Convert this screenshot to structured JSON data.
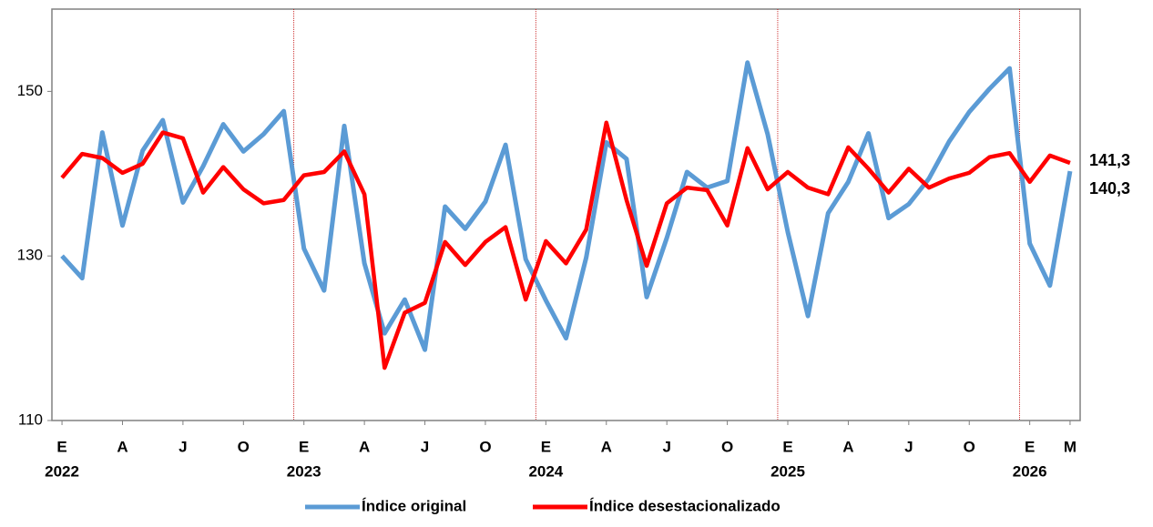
{
  "chart_data": {
    "type": "line",
    "categories": [
      "E",
      null,
      null,
      "A",
      null,
      null,
      "J",
      null,
      null,
      "O",
      null,
      null,
      "E",
      null,
      null,
      "A",
      null,
      null,
      "J",
      null,
      null,
      "O",
      null,
      null,
      "E",
      null,
      null,
      "A",
      null,
      null,
      "J",
      null,
      null,
      "O",
      null,
      null,
      "E",
      null,
      null,
      "A",
      null,
      null,
      "J",
      null,
      null,
      "O",
      null,
      null,
      "E",
      null,
      "M"
    ],
    "x_groups": [
      "2022",
      "2023",
      "2024",
      "2025",
      "2026"
    ],
    "ylim": [
      110,
      160
    ],
    "yticks": [
      110,
      130,
      150
    ],
    "legend": "bottom",
    "series": [
      {
        "name": "Índice original",
        "color": "#5b9bd5",
        "label_color": "#1f3864",
        "values": [
          130.0,
          127.3,
          145.0,
          133.7,
          142.8,
          146.5,
          136.5,
          140.9,
          146.0,
          142.7,
          144.8,
          147.6,
          130.9,
          125.8,
          145.8,
          129.1,
          120.6,
          124.7,
          118.6,
          136.0,
          133.3,
          136.6,
          143.5,
          129.6,
          124.6,
          120.0,
          129.8,
          143.8,
          141.8,
          125.0,
          132.2,
          140.2,
          138.3,
          139.1,
          153.5,
          144.8,
          132.9,
          122.7,
          135.2,
          139.0,
          144.9,
          134.6,
          136.3,
          139.4,
          143.9,
          147.5,
          150.3,
          152.8,
          131.5,
          126.4,
          140.3
        ],
        "value_labels": [
          null,
          null,
          null,
          null,
          null,
          null,
          null,
          null,
          null,
          null,
          null,
          null,
          null,
          null,
          null,
          null,
          null,
          null,
          null,
          null,
          null,
          null,
          null,
          null,
          null,
          null,
          null,
          null,
          null,
          null,
          null,
          null,
          null,
          null,
          null,
          null,
          null,
          null,
          null,
          null,
          null,
          null,
          null,
          null,
          null,
          null,
          null,
          null,
          null,
          null,
          "140,3"
        ]
      },
      {
        "name": "Índice desestacionalizado",
        "color": "#ff0000",
        "label_color": "#c00000",
        "values": [
          139.5,
          142.4,
          141.9,
          140.1,
          141.2,
          145.0,
          144.3,
          137.7,
          140.8,
          138.1,
          136.4,
          136.8,
          139.8,
          140.2,
          142.7,
          137.5,
          116.4,
          123.1,
          124.3,
          131.7,
          128.9,
          131.7,
          133.5,
          124.7,
          131.8,
          129.1,
          133.2,
          146.2,
          136.8,
          128.8,
          136.4,
          138.3,
          138.0,
          133.7,
          143.1,
          138.1,
          140.2,
          138.3,
          137.5,
          143.2,
          140.6,
          137.7,
          140.6,
          138.3,
          139.4,
          140.1,
          142.0,
          142.5,
          139.0,
          142.2,
          141.3
        ],
        "value_labels": [
          null,
          null,
          null,
          null,
          null,
          null,
          null,
          null,
          null,
          null,
          null,
          null,
          null,
          null,
          null,
          null,
          null,
          null,
          null,
          null,
          null,
          null,
          null,
          null,
          null,
          null,
          null,
          null,
          null,
          null,
          null,
          null,
          null,
          null,
          null,
          null,
          null,
          null,
          null,
          null,
          null,
          null,
          null,
          null,
          null,
          null,
          null,
          null,
          null,
          null,
          "141,3"
        ]
      }
    ]
  }
}
